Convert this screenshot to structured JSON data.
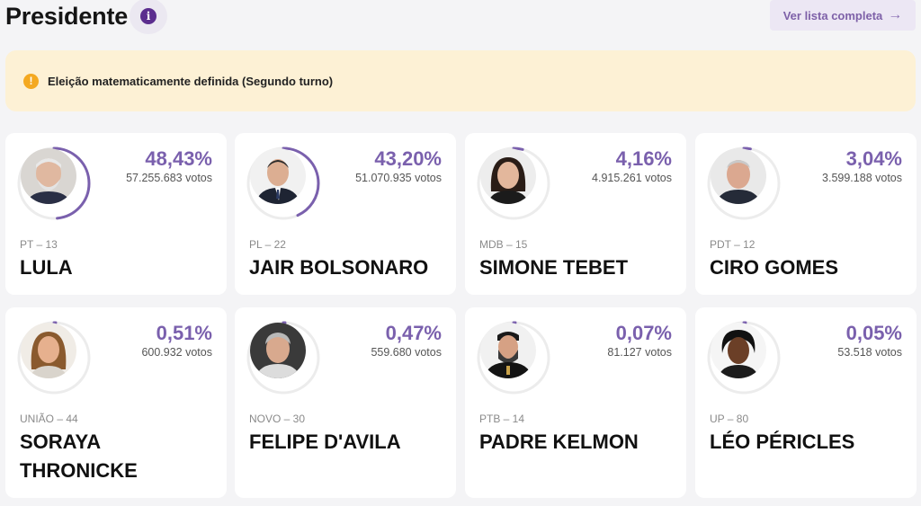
{
  "header": {
    "title": "Presidente",
    "info_icon": "i",
    "view_all_label": "Ver lista completa",
    "view_all_arrow": "→"
  },
  "banner": {
    "icon": "!",
    "text": "Eleição matematicamente definida (Segundo turno)"
  },
  "colors": {
    "accent": "#7a60ad",
    "ring_track": "#ececec",
    "banner_bg": "#fdf1d5",
    "warn": "#f4a921"
  },
  "candidates": [
    {
      "pct": "48,43%",
      "share": 0.4843,
      "votes": "57.255.683 votos",
      "party": "PT – 13",
      "name": "LULA"
    },
    {
      "pct": "43,20%",
      "share": 0.432,
      "votes": "51.070.935 votos",
      "party": "PL – 22",
      "name": "JAIR BOLSONARO"
    },
    {
      "pct": "4,16%",
      "share": 0.0416,
      "votes": "4.915.261 votos",
      "party": "MDB – 15",
      "name": "SIMONE TEBET"
    },
    {
      "pct": "3,04%",
      "share": 0.0304,
      "votes": "3.599.188 votos",
      "party": "PDT – 12",
      "name": "CIRO GOMES"
    },
    {
      "pct": "0,51%",
      "share": 0.0051,
      "votes": "600.932 votos",
      "party": "UNIÃO – 44",
      "name": "SORAYA THRONICKE"
    },
    {
      "pct": "0,47%",
      "share": 0.0047,
      "votes": "559.680 votos",
      "party": "NOVO – 30",
      "name": "FELIPE D'AVILA"
    },
    {
      "pct": "0,07%",
      "share": 0.0007,
      "votes": "81.127 votos",
      "party": "PTB – 14",
      "name": "PADRE KELMON"
    },
    {
      "pct": "0,05%",
      "share": 0.0005,
      "votes": "53.518 votos",
      "party": "UP – 80",
      "name": "LÉO PÉRICLES"
    }
  ]
}
